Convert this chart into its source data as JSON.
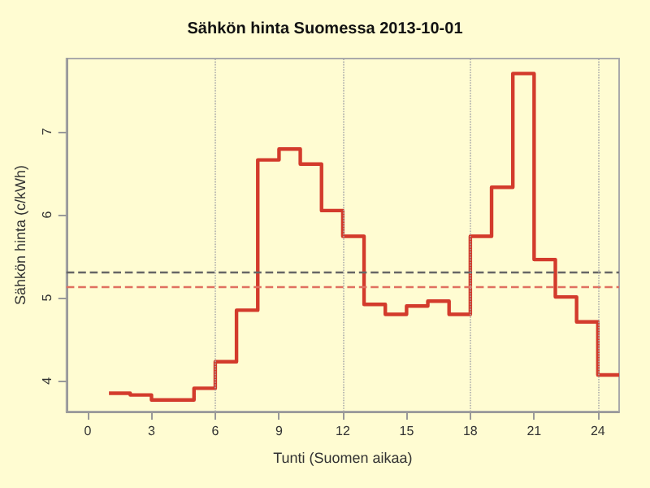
{
  "chart_data": {
    "type": "step",
    "title": "Sähkön hinta Suomessa 2013-10-01",
    "xlabel": "Tunti (Suomen aikaa)",
    "ylabel": "Sähkön hinta (c/kWh)",
    "x": [
      1,
      2,
      3,
      4,
      5,
      6,
      7,
      8,
      9,
      10,
      11,
      12,
      13,
      14,
      15,
      16,
      17,
      18,
      19,
      20,
      21,
      22,
      23,
      24,
      25
    ],
    "series": [
      {
        "color": "#d33b2c",
        "values": [
          3.85,
          3.83,
          3.77,
          3.77,
          3.91,
          4.23,
          4.85,
          6.66,
          6.79,
          6.61,
          6.05,
          5.74,
          4.92,
          4.8,
          4.9,
          4.96,
          4.8,
          5.74,
          6.33,
          7.7,
          5.46,
          5.01,
          4.71,
          4.07,
          4.07
        ]
      }
    ],
    "xlim": [
      -1,
      25
    ],
    "xticks": [
      0,
      3,
      6,
      9,
      12,
      15,
      18,
      21,
      24
    ],
    "ylim": [
      3.63,
      7.88
    ],
    "yticks": [
      4,
      5,
      6,
      7
    ],
    "ref_lines": [
      {
        "axis": "y",
        "value": 5.3,
        "color": "#666666",
        "line_style": "dashed"
      },
      {
        "axis": "y",
        "value": 5.14,
        "color": "#e07060",
        "line_style": "dashed"
      },
      {
        "axis": "x",
        "value": 6,
        "color": "#aaaaaa",
        "line_style": "dotted"
      },
      {
        "axis": "x",
        "value": 12,
        "color": "#aaaaaa",
        "line_style": "dotted"
      },
      {
        "axis": "x",
        "value": 18,
        "color": "#aaaaaa",
        "line_style": "dotted"
      },
      {
        "axis": "x",
        "value": 24,
        "color": "#aaaaaa",
        "line_style": "dotted"
      }
    ],
    "grid": false,
    "marker": "none",
    "line_style": "solid"
  }
}
